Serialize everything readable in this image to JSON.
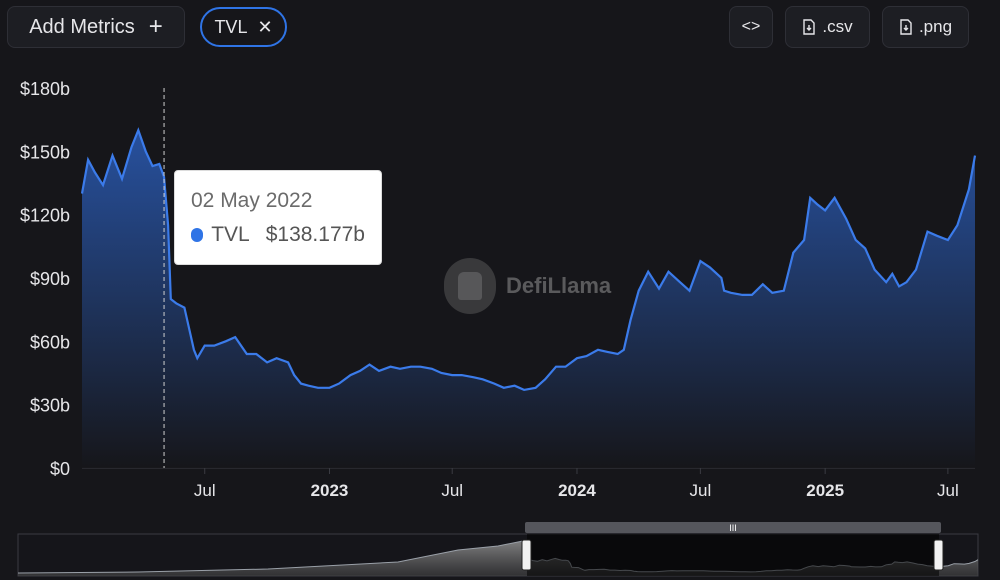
{
  "toolbar": {
    "add_metrics_label": "Add Metrics",
    "add_icon": "plus-icon",
    "metric_chip_label": "TVL",
    "remove_icon": "close-icon",
    "embed_label": "<>",
    "csv_label": ".csv",
    "png_label": ".png",
    "download_icon": "download-file-icon"
  },
  "tooltip": {
    "date": "02 May 2022",
    "series_name": "TVL",
    "value": "$138.177b"
  },
  "watermark": {
    "text": "DefiLlama"
  },
  "colors": {
    "line": "#3b7bea",
    "background": "#16161a",
    "accent": "#2f74e6"
  },
  "chart_data": {
    "type": "area",
    "title": "",
    "xlabel": "",
    "ylabel": "",
    "ylim": [
      0,
      180
    ],
    "y_ticks": [
      "$0",
      "$30b",
      "$60b",
      "$90b",
      "$120b",
      "$150b",
      "$180b"
    ],
    "x_ticks": [
      "Jul",
      "2023",
      "Jul",
      "2024",
      "Jul",
      "2025",
      "Jul"
    ],
    "x_tick_dates": [
      "2022-07-01",
      "2023-01-01",
      "2023-07-01",
      "2024-01-01",
      "2024-07-01",
      "2025-01-01",
      "2025-07-01"
    ],
    "x_range": [
      "2022-01-01",
      "2025-08-10"
    ],
    "grid": false,
    "cursor_date": "2022-05-02",
    "series": [
      {
        "name": "TVL",
        "x": [
          "2022-01-01",
          "2022-01-10",
          "2022-01-20",
          "2022-02-01",
          "2022-02-15",
          "2022-03-01",
          "2022-03-15",
          "2022-03-25",
          "2022-04-05",
          "2022-04-15",
          "2022-04-25",
          "2022-05-02",
          "2022-05-08",
          "2022-05-12",
          "2022-05-20",
          "2022-06-01",
          "2022-06-15",
          "2022-06-20",
          "2022-07-01",
          "2022-07-15",
          "2022-08-01",
          "2022-08-15",
          "2022-09-01",
          "2022-09-15",
          "2022-10-01",
          "2022-10-15",
          "2022-11-01",
          "2022-11-10",
          "2022-11-20",
          "2022-12-01",
          "2022-12-15",
          "2023-01-01",
          "2023-01-15",
          "2023-02-01",
          "2023-02-15",
          "2023-03-01",
          "2023-03-15",
          "2023-04-01",
          "2023-04-15",
          "2023-05-01",
          "2023-05-15",
          "2023-06-01",
          "2023-06-15",
          "2023-07-01",
          "2023-07-15",
          "2023-08-01",
          "2023-08-15",
          "2023-09-01",
          "2023-09-15",
          "2023-10-01",
          "2023-10-15",
          "2023-11-01",
          "2023-11-15",
          "2023-12-01",
          "2023-12-15",
          "2024-01-01",
          "2024-01-15",
          "2024-02-01",
          "2024-02-15",
          "2024-03-01",
          "2024-03-10",
          "2024-03-20",
          "2024-04-01",
          "2024-04-15",
          "2024-05-01",
          "2024-05-15",
          "2024-06-01",
          "2024-06-15",
          "2024-07-01",
          "2024-07-15",
          "2024-08-01",
          "2024-08-05",
          "2024-08-15",
          "2024-09-01",
          "2024-09-15",
          "2024-10-01",
          "2024-10-15",
          "2024-11-01",
          "2024-11-15",
          "2024-12-01",
          "2024-12-10",
          "2024-12-20",
          "2025-01-01",
          "2025-01-15",
          "2025-02-01",
          "2025-02-15",
          "2025-03-01",
          "2025-03-15",
          "2025-04-01",
          "2025-04-10",
          "2025-04-20",
          "2025-05-01",
          "2025-05-15",
          "2025-06-01",
          "2025-06-15",
          "2025-07-01",
          "2025-07-15",
          "2025-08-01",
          "2025-08-10"
        ],
        "values": [
          130,
          146,
          140,
          134,
          148,
          137,
          152,
          160,
          150,
          143,
          144,
          138,
          115,
          80,
          78,
          76,
          56,
          52,
          58,
          58,
          60,
          62,
          54,
          54,
          50,
          52,
          50,
          44,
          40,
          39,
          38,
          38,
          40,
          44,
          46,
          49,
          46,
          48,
          47,
          48,
          48,
          47,
          45,
          44,
          44,
          43,
          42,
          40,
          38,
          39,
          37,
          38,
          42,
          48,
          48,
          52,
          53,
          56,
          55,
          54,
          56,
          70,
          84,
          93,
          85,
          93,
          88,
          84,
          98,
          95,
          90,
          84,
          83,
          82,
          82,
          87,
          83,
          84,
          102,
          108,
          128,
          125,
          122,
          128,
          118,
          108,
          104,
          94,
          88,
          92,
          86,
          88,
          94,
          112,
          110,
          108,
          115,
          132,
          148
        ]
      }
    ],
    "navigator": {
      "selected_range": [
        "2022-01-01",
        "2025-08-10"
      ]
    }
  }
}
